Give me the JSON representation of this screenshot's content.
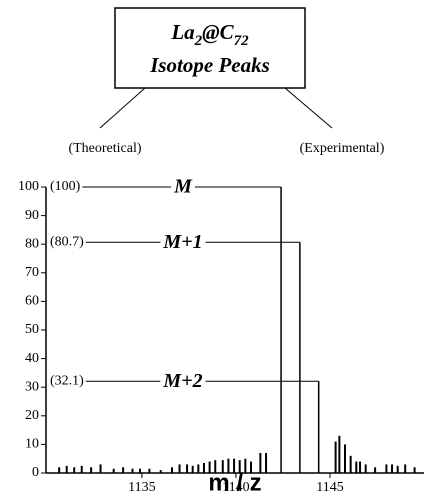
{
  "chart_data": {
    "type": "bar",
    "title": [
      "La",
      "2",
      "@C",
      "72"
    ],
    "subtitle": "Isotope Peaks",
    "left_label": "(Theoretical)",
    "right_label": "(Experimental)",
    "x_label": "m / z",
    "xlim": [
      1129.9,
      1150
    ],
    "ylim": [
      0,
      100
    ],
    "xticks": [
      1135,
      1140,
      1145
    ],
    "yticks": [
      0,
      10,
      20,
      30,
      40,
      50,
      60,
      70,
      80,
      90,
      100
    ],
    "series": [
      {
        "name": "Theoretical",
        "color": "#000000",
        "x": [
          1142.4,
          1143.4,
          1144.4
        ],
        "values": [
          100,
          80.7,
          32.1
        ],
        "value_labels": [
          "(100)",
          "(80.7)",
          "(32.1)"
        ],
        "annotations": [
          "M",
          "M+1",
          "M+2"
        ]
      },
      {
        "name": "Experimental",
        "color": "#000000",
        "x": [
          1130.6,
          1131.0,
          1131.4,
          1131.8,
          1132.3,
          1132.8,
          1133.5,
          1134.0,
          1134.5,
          1134.9,
          1135.4,
          1136.0,
          1136.6,
          1137.0,
          1137.4,
          1137.7,
          1138.0,
          1138.3,
          1138.6,
          1138.9,
          1139.3,
          1139.6,
          1139.9,
          1140.2,
          1140.5,
          1140.8,
          1141.3,
          1141.6,
          1145.3,
          1145.5,
          1145.8,
          1146.1,
          1146.4,
          1146.6,
          1146.9,
          1147.4,
          1148.0,
          1148.3,
          1148.6,
          1149.0,
          1149.5
        ],
        "values": [
          2,
          2.5,
          2,
          2.5,
          2,
          3,
          1.5,
          2,
          1.5,
          1.5,
          1.5,
          1,
          2,
          3,
          3,
          2.5,
          3,
          3.5,
          4,
          4.5,
          4.5,
          5,
          5,
          4.5,
          5,
          4,
          7,
          7,
          11,
          13,
          10,
          6,
          4,
          4,
          3,
          2,
          3,
          3,
          2.5,
          3,
          2
        ]
      }
    ]
  }
}
